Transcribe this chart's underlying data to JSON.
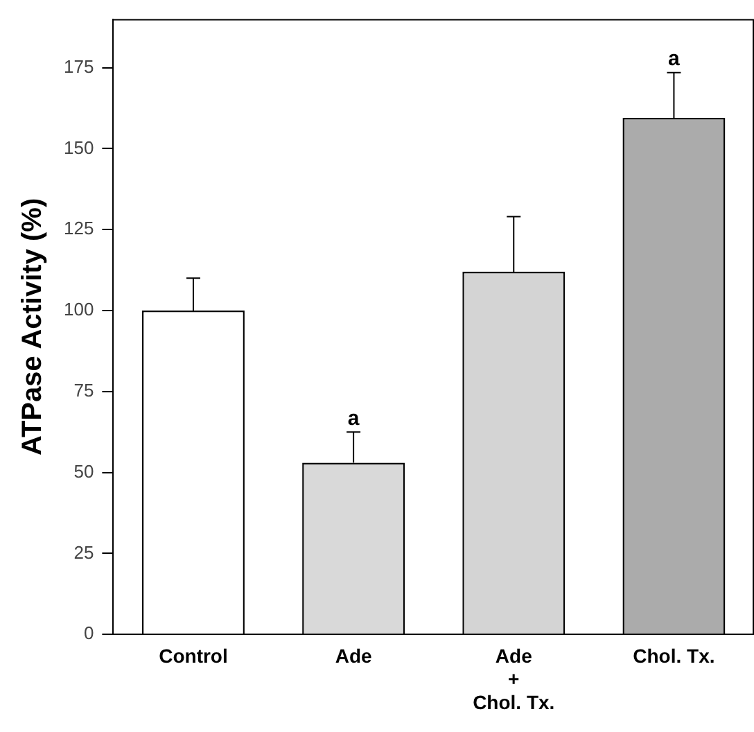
{
  "chart_data": {
    "type": "bar",
    "ylabel": "ATPase Activity (%)",
    "categories": [
      "Control",
      "Ade",
      "Ade\n+\nChol. Tx.",
      "Chol. Tx."
    ],
    "values": [
      100,
      53,
      112,
      159.5
    ],
    "colors": [
      "#ffffff",
      "#d9d9d9",
      "#d4d4d4",
      "#ababab"
    ],
    "errors": [
      10,
      9.5,
      17,
      14
    ],
    "ylim": [
      0,
      190
    ],
    "yticks": [
      0,
      25,
      50,
      75,
      100,
      125,
      150,
      175
    ],
    "grid": false,
    "legend": false,
    "annotations": [
      {
        "text": "a",
        "x": "Ade",
        "y": 62.5
      },
      {
        "text": "a",
        "x": "Chol. Tx.",
        "y": 173.5
      }
    ]
  }
}
